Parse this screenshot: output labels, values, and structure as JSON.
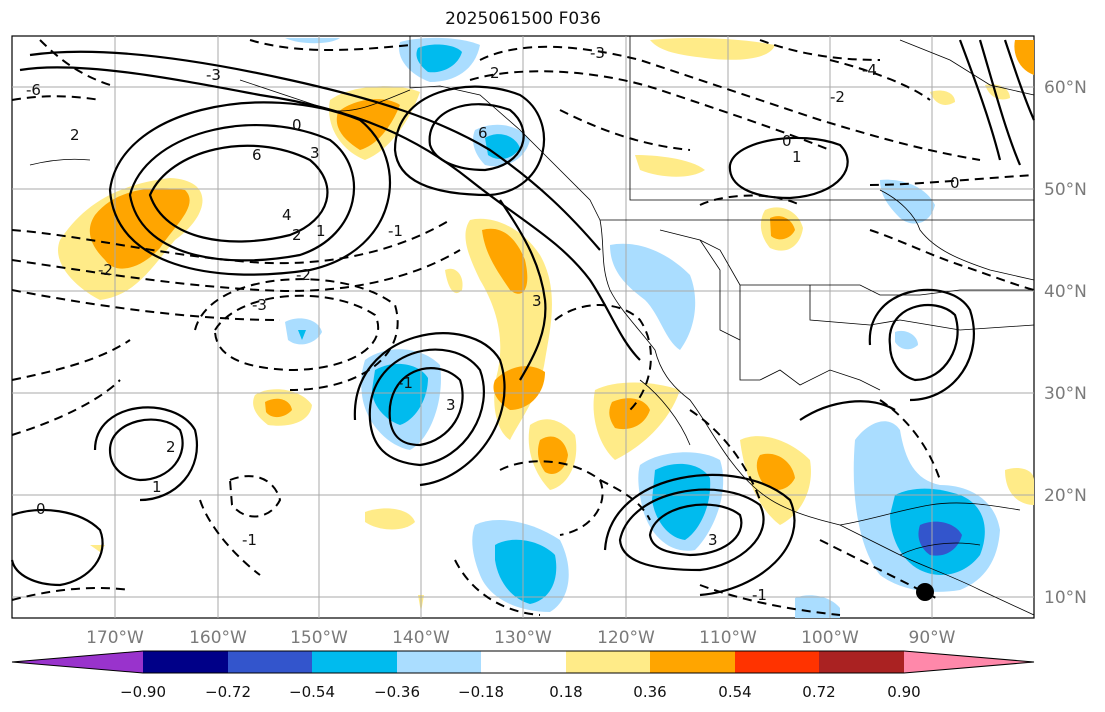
{
  "title": "2025061500 F036",
  "map": {
    "lon_labels": [
      "170°W",
      "160°W",
      "150°W",
      "140°W",
      "130°W",
      "120°W",
      "110°W",
      "100°W",
      "90°W"
    ],
    "lat_labels": [
      "60°N",
      "50°N",
      "40°N",
      "30°N",
      "20°N",
      "10°N"
    ],
    "contour_labels": [
      "6",
      "3",
      "2",
      "0",
      "6",
      "4",
      "2",
      "1",
      "-1",
      "-2",
      "-3",
      "-4",
      "-6",
      "3",
      "2",
      "1",
      "0",
      "-1",
      "-2",
      "-3",
      "3",
      "2",
      "1",
      "0",
      "-1",
      "-2",
      "-3",
      "0",
      "-1",
      "3"
    ]
  },
  "colorbar": {
    "ticks": [
      "−0.90",
      "−0.72",
      "−0.54",
      "−0.36",
      "−0.18",
      "0.18",
      "0.36",
      "0.54",
      "0.72",
      "0.90"
    ],
    "colors": [
      "#9933cc",
      "#000088",
      "#3355cc",
      "#00bbee",
      "#aaddff",
      "#ffffff",
      "#ffeb88",
      "#ffa500",
      "#ff3300",
      "#aa2222",
      "#ff88aa"
    ]
  }
}
